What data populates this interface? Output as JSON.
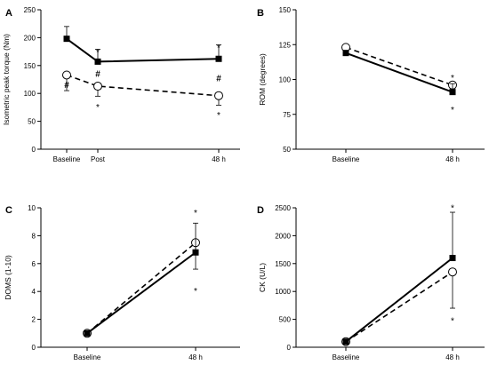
{
  "chart_data": [
    {
      "panel": "A",
      "type": "line",
      "ylabel": "Isometric peak torque (Nm)",
      "ylim": [
        0,
        250
      ],
      "yticks": [
        0,
        50,
        100,
        150,
        200,
        250
      ],
      "x": [
        0,
        1,
        5
      ],
      "xtick_labels": [
        "Baseline",
        "Post",
        "48 h"
      ],
      "series": [
        {
          "marker": "filled-square",
          "line": "solid",
          "values": [
            198,
            157,
            162
          ],
          "error": [
            22,
            22,
            25
          ]
        },
        {
          "marker": "open-circle",
          "line": "dashed",
          "values": [
            133,
            113,
            96
          ],
          "error": [
            28,
            18,
            17
          ]
        }
      ],
      "annotations": [
        {
          "text": "*",
          "x": 1,
          "y": 178
        },
        {
          "text": "*",
          "x": 5,
          "y": 186
        },
        {
          "text": "#",
          "x": 0,
          "y": 116
        },
        {
          "text": "#",
          "x": 1,
          "y": 136
        },
        {
          "text": "#",
          "x": 5,
          "y": 128
        },
        {
          "text": "*",
          "x": 1,
          "y": 80
        },
        {
          "text": "*",
          "x": 5,
          "y": 65
        }
      ]
    },
    {
      "panel": "B",
      "type": "line",
      "ylabel": "ROM (degrees)",
      "ylim": [
        50,
        150
      ],
      "yticks": [
        50,
        75,
        100,
        125,
        150
      ],
      "x": [
        0,
        1
      ],
      "xtick_labels": [
        "Baseline",
        "48 h"
      ],
      "series": [
        {
          "marker": "filled-square",
          "line": "solid",
          "values": [
            119,
            91
          ],
          "error": [
            0,
            6
          ]
        },
        {
          "marker": "open-circle",
          "line": "dashed",
          "values": [
            123,
            96
          ],
          "error": [
            4,
            4
          ]
        }
      ],
      "annotations": [
        {
          "text": "*",
          "x": 1,
          "y": 103
        },
        {
          "text": "*",
          "x": 1,
          "y": 80
        }
      ]
    },
    {
      "panel": "C",
      "type": "line",
      "ylabel": "DOMS (1-10)",
      "ylim": [
        0,
        10
      ],
      "yticks": [
        0,
        2,
        4,
        6,
        8,
        10
      ],
      "x": [
        0,
        1
      ],
      "xtick_labels": [
        "Baseline",
        "48 h"
      ],
      "series": [
        {
          "marker": "filled-square",
          "line": "solid",
          "values": [
            1.0,
            6.8
          ],
          "error": [
            0,
            2.1
          ]
        },
        {
          "marker": "open-circle",
          "line": "dashed",
          "values": [
            1.0,
            7.5
          ],
          "error": [
            0,
            1.9
          ]
        }
      ],
      "annotations": [
        {
          "text": "*",
          "x": 1,
          "y": 9.8
        },
        {
          "text": "*",
          "x": 1,
          "y": 4.2
        }
      ]
    },
    {
      "panel": "D",
      "type": "line",
      "ylabel": "CK (U/L)",
      "ylim": [
        0,
        2500
      ],
      "yticks": [
        0,
        500,
        1000,
        1500,
        2000,
        2500
      ],
      "x": [
        0,
        1
      ],
      "xtick_labels": [
        "Baseline",
        "48 h"
      ],
      "series": [
        {
          "marker": "filled-square",
          "line": "solid",
          "values": [
            100,
            1600
          ],
          "error": [
            0,
            820
          ]
        },
        {
          "marker": "open-circle",
          "line": "dashed",
          "values": [
            100,
            1350
          ],
          "error": [
            0,
            650
          ]
        }
      ],
      "annotations": [
        {
          "text": "*",
          "x": 1,
          "y": 2540
        },
        {
          "text": "*",
          "x": 1,
          "y": 520
        }
      ]
    }
  ]
}
